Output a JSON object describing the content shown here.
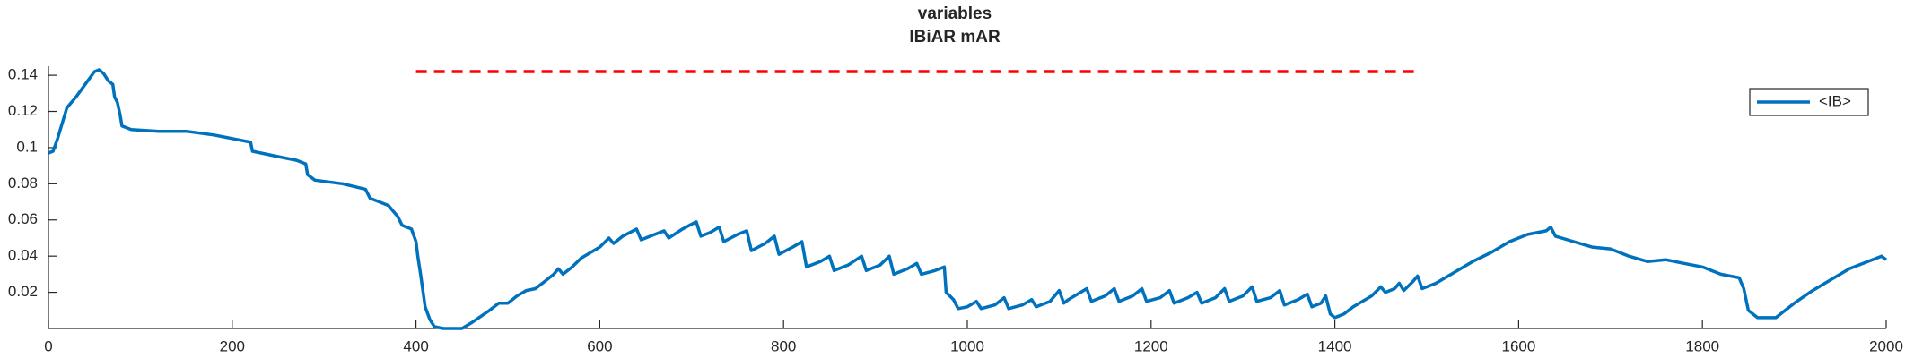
{
  "chart_data": {
    "type": "line",
    "title": "variables",
    "subtitle": "IBiAR mAR",
    "xlim": [
      0,
      2000
    ],
    "xticks": [
      0,
      200,
      400,
      600,
      800,
      1000,
      1200,
      1400,
      1600,
      1800,
      2000
    ],
    "ylim": [
      0,
      0.145
    ],
    "yticks": [
      0.02,
      0.04,
      0.06,
      0.08,
      0.1,
      0.12,
      0.14
    ],
    "legend": "upper right",
    "reference_line": {
      "x": [
        400,
        1490
      ],
      "y": 0.142,
      "color": "#ff0000"
    },
    "series": [
      {
        "name": "<IB>",
        "color": "#0072bd",
        "x": [
          0,
          5,
          10,
          20,
          30,
          40,
          50,
          55,
          60,
          65,
          70,
          72,
          75,
          78,
          80,
          90,
          120,
          150,
          180,
          200,
          220,
          222,
          250,
          270,
          280,
          282,
          290,
          320,
          345,
          350,
          370,
          375,
          380,
          385,
          395,
          400,
          402,
          405,
          410,
          415,
          420,
          430,
          450,
          460,
          480,
          490,
          500,
          510,
          520,
          530,
          540,
          550,
          555,
          560,
          570,
          580,
          590,
          600,
          610,
          615,
          625,
          640,
          645,
          655,
          670,
          675,
          690,
          705,
          710,
          720,
          730,
          735,
          750,
          760,
          765,
          780,
          790,
          795,
          810,
          820,
          825,
          840,
          850,
          855,
          870,
          885,
          890,
          905,
          915,
          920,
          935,
          945,
          950,
          965,
          975,
          977,
          985,
          990,
          1000,
          1010,
          1015,
          1030,
          1040,
          1045,
          1060,
          1070,
          1075,
          1090,
          1100,
          1105,
          1110,
          1120,
          1130,
          1135,
          1150,
          1160,
          1165,
          1180,
          1190,
          1195,
          1210,
          1220,
          1225,
          1240,
          1250,
          1255,
          1270,
          1280,
          1285,
          1300,
          1310,
          1315,
          1330,
          1340,
          1345,
          1360,
          1370,
          1375,
          1385,
          1390,
          1395,
          1400,
          1410,
          1420,
          1440,
          1450,
          1455,
          1465,
          1470,
          1475,
          1485,
          1490,
          1495,
          1510,
          1530,
          1550,
          1570,
          1590,
          1610,
          1630,
          1635,
          1640,
          1660,
          1680,
          1700,
          1720,
          1740,
          1760,
          1780,
          1800,
          1820,
          1840,
          1845,
          1850,
          1860,
          1880,
          1900,
          1920,
          1940,
          1960,
          1980,
          1995,
          2000
        ],
        "values": [
          0.097,
          0.098,
          0.105,
          0.122,
          0.128,
          0.135,
          0.142,
          0.143,
          0.141,
          0.137,
          0.135,
          0.128,
          0.125,
          0.118,
          0.112,
          0.11,
          0.109,
          0.109,
          0.107,
          0.105,
          0.103,
          0.098,
          0.095,
          0.093,
          0.091,
          0.085,
          0.082,
          0.08,
          0.077,
          0.072,
          0.068,
          0.065,
          0.062,
          0.057,
          0.055,
          0.048,
          0.04,
          0.03,
          0.012,
          0.005,
          0.001,
          0,
          0,
          0.003,
          0.01,
          0.014,
          0.014,
          0.018,
          0.021,
          0.022,
          0.026,
          0.03,
          0.033,
          0.03,
          0.034,
          0.039,
          0.042,
          0.045,
          0.05,
          0.047,
          0.051,
          0.055,
          0.049,
          0.051,
          0.054,
          0.05,
          0.055,
          0.059,
          0.051,
          0.053,
          0.056,
          0.048,
          0.052,
          0.054,
          0.043,
          0.047,
          0.051,
          0.041,
          0.045,
          0.048,
          0.034,
          0.037,
          0.04,
          0.032,
          0.035,
          0.04,
          0.032,
          0.035,
          0.04,
          0.03,
          0.033,
          0.036,
          0.03,
          0.032,
          0.034,
          0.02,
          0.016,
          0.011,
          0.012,
          0.015,
          0.011,
          0.013,
          0.017,
          0.011,
          0.013,
          0.016,
          0.012,
          0.015,
          0.021,
          0.014,
          0.016,
          0.019,
          0.022,
          0.015,
          0.018,
          0.022,
          0.015,
          0.018,
          0.022,
          0.015,
          0.017,
          0.021,
          0.014,
          0.017,
          0.02,
          0.014,
          0.017,
          0.022,
          0.015,
          0.018,
          0.023,
          0.015,
          0.017,
          0.021,
          0.013,
          0.016,
          0.019,
          0.012,
          0.014,
          0.018,
          0.008,
          0.006,
          0.008,
          0.012,
          0.018,
          0.023,
          0.02,
          0.022,
          0.025,
          0.021,
          0.026,
          0.029,
          0.022,
          0.025,
          0.031,
          0.037,
          0.042,
          0.048,
          0.052,
          0.054,
          0.056,
          0.051,
          0.048,
          0.045,
          0.044,
          0.04,
          0.037,
          0.038,
          0.036,
          0.034,
          0.03,
          0.028,
          0.022,
          0.01,
          0.006,
          0.006,
          0.014,
          0.021,
          0.027,
          0.033,
          0.037,
          0.04,
          0.038
        ]
      }
    ]
  }
}
